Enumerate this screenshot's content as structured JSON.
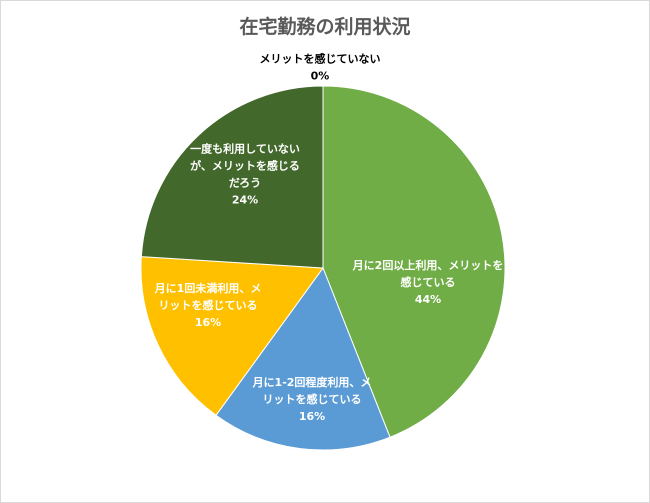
{
  "chart_data": {
    "type": "pie",
    "title": "在宅勤務の利用状況",
    "start_angle_deg": 0,
    "direction": "clockwise",
    "slices": [
      {
        "label_lines": [
          "月に2回以上利用、メリットを",
          "感じている"
        ],
        "pct_label": "44%",
        "value": 44,
        "color": "#70ad47",
        "text_color": "#ffffff"
      },
      {
        "label_lines": [
          "月に1-2回程度利用、メ",
          "リットを感じている"
        ],
        "pct_label": "16%",
        "value": 16,
        "color": "#5b9bd5",
        "text_color": "#ffffff"
      },
      {
        "label_lines": [
          "月に1回未満利用、メ",
          "リットを感じている"
        ],
        "pct_label": "16%",
        "value": 16,
        "color": "#ffc000",
        "text_color": "#ffffff"
      },
      {
        "label_lines": [
          "一度も利用していない",
          "が、メリットを感じる",
          "だろう"
        ],
        "pct_label": "24%",
        "value": 24,
        "color": "#43682b",
        "text_color": "#ffffff"
      },
      {
        "label_lines": [
          "メリットを感じていない"
        ],
        "pct_label": "0%",
        "value": 0,
        "color": "#a5a5a5",
        "text_color": "#000000"
      }
    ]
  }
}
